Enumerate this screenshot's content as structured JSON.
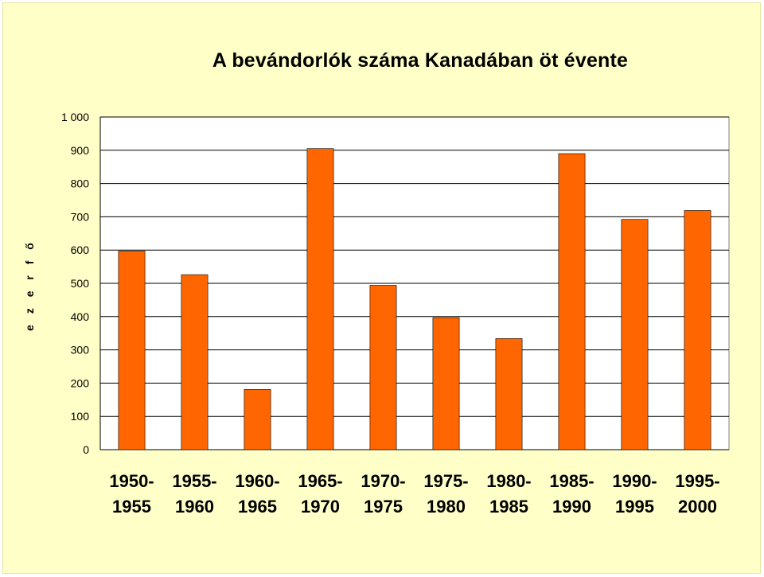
{
  "chart_data": {
    "type": "bar",
    "title": "A bevándorlók száma Kanadában öt évente",
    "ylabel": "e z e r  f ő",
    "xlabel": "",
    "ylim": [
      0,
      1000
    ],
    "yticks": [
      0,
      100,
      200,
      300,
      400,
      500,
      600,
      700,
      800,
      900,
      1000
    ],
    "ytick_labels": [
      "0",
      "100",
      "200",
      "300",
      "400",
      "500",
      "600",
      "700",
      "800",
      "900",
      "1 000"
    ],
    "categories": [
      [
        "1950-",
        "1955"
      ],
      [
        "1955-",
        "1960"
      ],
      [
        "1960-",
        "1965"
      ],
      [
        "1965-",
        "1970"
      ],
      [
        "1970-",
        "1975"
      ],
      [
        "1975-",
        "1980"
      ],
      [
        "1980-",
        "1985"
      ],
      [
        "1985-",
        "1990"
      ],
      [
        "1990-",
        "1995"
      ],
      [
        "1995-",
        "2000"
      ]
    ],
    "values": [
      597,
      526,
      181,
      905,
      494,
      397,
      334,
      890,
      692,
      719
    ],
    "grid": "horizontal",
    "legend": "none",
    "colors": {
      "bar": "#ff6600",
      "background": "#ffffc8",
      "plot": "#ffffff",
      "grid": "#000000"
    }
  }
}
